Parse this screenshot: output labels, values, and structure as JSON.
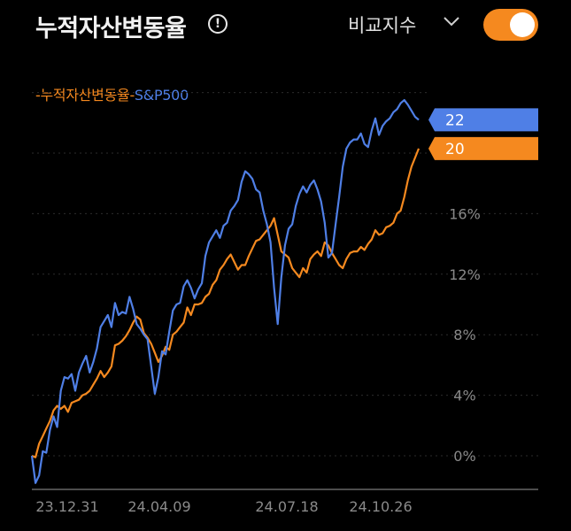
{
  "header": {
    "title": "누적자산변동율",
    "info_icon": "info-circle-icon",
    "compare_label": "비교지수",
    "compare_icon": "chevron-down-icon",
    "toggle_on": true,
    "accent": "#f5891f"
  },
  "chart_data": {
    "type": "line",
    "legend": [
      {
        "name": "누적자산변동율",
        "color": "#f5891f"
      },
      {
        "name": "S&P500",
        "color": "#4f7fe6"
      }
    ],
    "x_ticks": [
      "23.12.31",
      "24.04.09",
      "24.07.18",
      "24.10.26"
    ],
    "y_ticks": [
      "0%",
      "4%",
      "8%",
      "12%",
      "16%"
    ],
    "ylim": [
      -2,
      24
    ],
    "grid": "horizontal-dotted",
    "end_badges": [
      {
        "series": "S&P500",
        "value": "22",
        "color": "#4f7fe6"
      },
      {
        "series": "누적자산변동율",
        "value": "20",
        "color": "#f5891f"
      }
    ],
    "series": [
      {
        "name": "누적자산변동율",
        "color": "#f5891f",
        "values": [
          0.0,
          -0.1,
          0.8,
          1.3,
          1.8,
          2.3,
          3.0,
          3.3,
          3.1,
          3.3,
          2.9,
          3.5,
          3.6,
          3.7,
          4.0,
          4.1,
          4.3,
          4.7,
          5.1,
          5.6,
          5.2,
          5.5,
          5.9,
          7.3,
          7.4,
          7.6,
          7.9,
          8.3,
          8.8,
          9.2,
          9.0,
          8.1,
          7.8,
          7.4,
          6.8,
          6.2,
          6.6,
          7.2,
          7.0,
          8.0,
          8.2,
          8.5,
          8.8,
          9.8,
          9.3,
          10.0,
          10.0,
          10.1,
          10.5,
          10.7,
          11.3,
          11.6,
          12.3,
          12.6,
          13.0,
          13.3,
          12.8,
          12.3,
          12.6,
          12.6,
          13.2,
          13.7,
          14.2,
          14.3,
          14.6,
          14.9,
          15.2,
          15.7,
          14.6,
          13.5,
          13.3,
          13.1,
          12.4,
          12.1,
          11.8,
          12.4,
          12.1,
          13.0,
          13.3,
          13.5,
          13.2,
          14.1,
          13.9,
          13.4,
          13.0,
          12.6,
          12.4,
          13.0,
          13.4,
          13.5,
          13.5,
          13.8,
          13.6,
          14.0,
          14.3,
          14.9,
          14.6,
          14.7,
          15.1,
          15.2,
          15.4,
          16.0,
          16.2,
          17.1,
          18.2,
          19.1,
          19.7,
          20.3
        ]
      },
      {
        "name": "S&P500",
        "color": "#4f7fe6",
        "values": [
          0.0,
          -1.8,
          -1.3,
          0.3,
          0.2,
          1.7,
          2.6,
          1.9,
          4.3,
          5.2,
          5.1,
          5.4,
          4.3,
          5.5,
          6.1,
          6.6,
          5.5,
          6.2,
          7.1,
          8.5,
          8.9,
          9.3,
          8.5,
          10.1,
          9.3,
          9.5,
          9.4,
          10.5,
          9.7,
          8.7,
          8.4,
          8.0,
          7.7,
          5.9,
          4.1,
          5.2,
          6.9,
          6.7,
          8.2,
          9.6,
          10.0,
          10.1,
          11.2,
          11.6,
          11.1,
          10.4,
          11.0,
          11.4,
          13.2,
          14.1,
          14.5,
          14.9,
          14.4,
          15.2,
          15.4,
          16.2,
          16.5,
          16.9,
          18.1,
          18.8,
          18.6,
          18.3,
          17.6,
          17.4,
          16.2,
          15.3,
          14.1,
          11.1,
          8.7,
          11.8,
          13.9,
          15.0,
          15.3,
          16.5,
          17.3,
          17.8,
          17.4,
          17.9,
          18.2,
          17.6,
          16.8,
          15.4,
          13.1,
          13.4,
          15.3,
          17.1,
          19.1,
          20.3,
          20.7,
          20.9,
          20.9,
          21.3,
          20.6,
          20.4,
          21.5,
          22.3,
          21.2,
          21.8,
          22.1,
          22.3,
          22.7,
          22.9,
          23.3,
          23.5,
          23.2,
          22.8,
          22.4,
          22.2
        ]
      }
    ]
  }
}
